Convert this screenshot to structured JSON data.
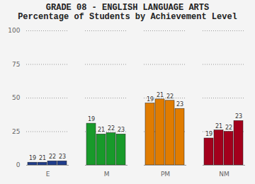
{
  "chart_data": {
    "type": "bar",
    "title": "GRADE 08 - ENGLISH LANGUAGE ARTS",
    "subtitle": "Percentage of Students by Achievement Level",
    "categories": [
      "E",
      "M",
      "PM",
      "NM"
    ],
    "colors": [
      "#1f3d8c",
      "#189a2a",
      "#e07c00",
      "#a3001c"
    ],
    "series": [
      {
        "name": "19",
        "values": [
          2,
          31,
          46,
          20
        ]
      },
      {
        "name": "21",
        "values": [
          2,
          23,
          49,
          26
        ]
      },
      {
        "name": "22",
        "values": [
          3,
          24,
          48,
          25
        ]
      },
      {
        "name": "23",
        "values": [
          3,
          23,
          42,
          33
        ]
      }
    ],
    "ylim": [
      0,
      100
    ],
    "yticks": [
      0,
      25,
      50,
      75,
      100
    ],
    "grid": true
  }
}
